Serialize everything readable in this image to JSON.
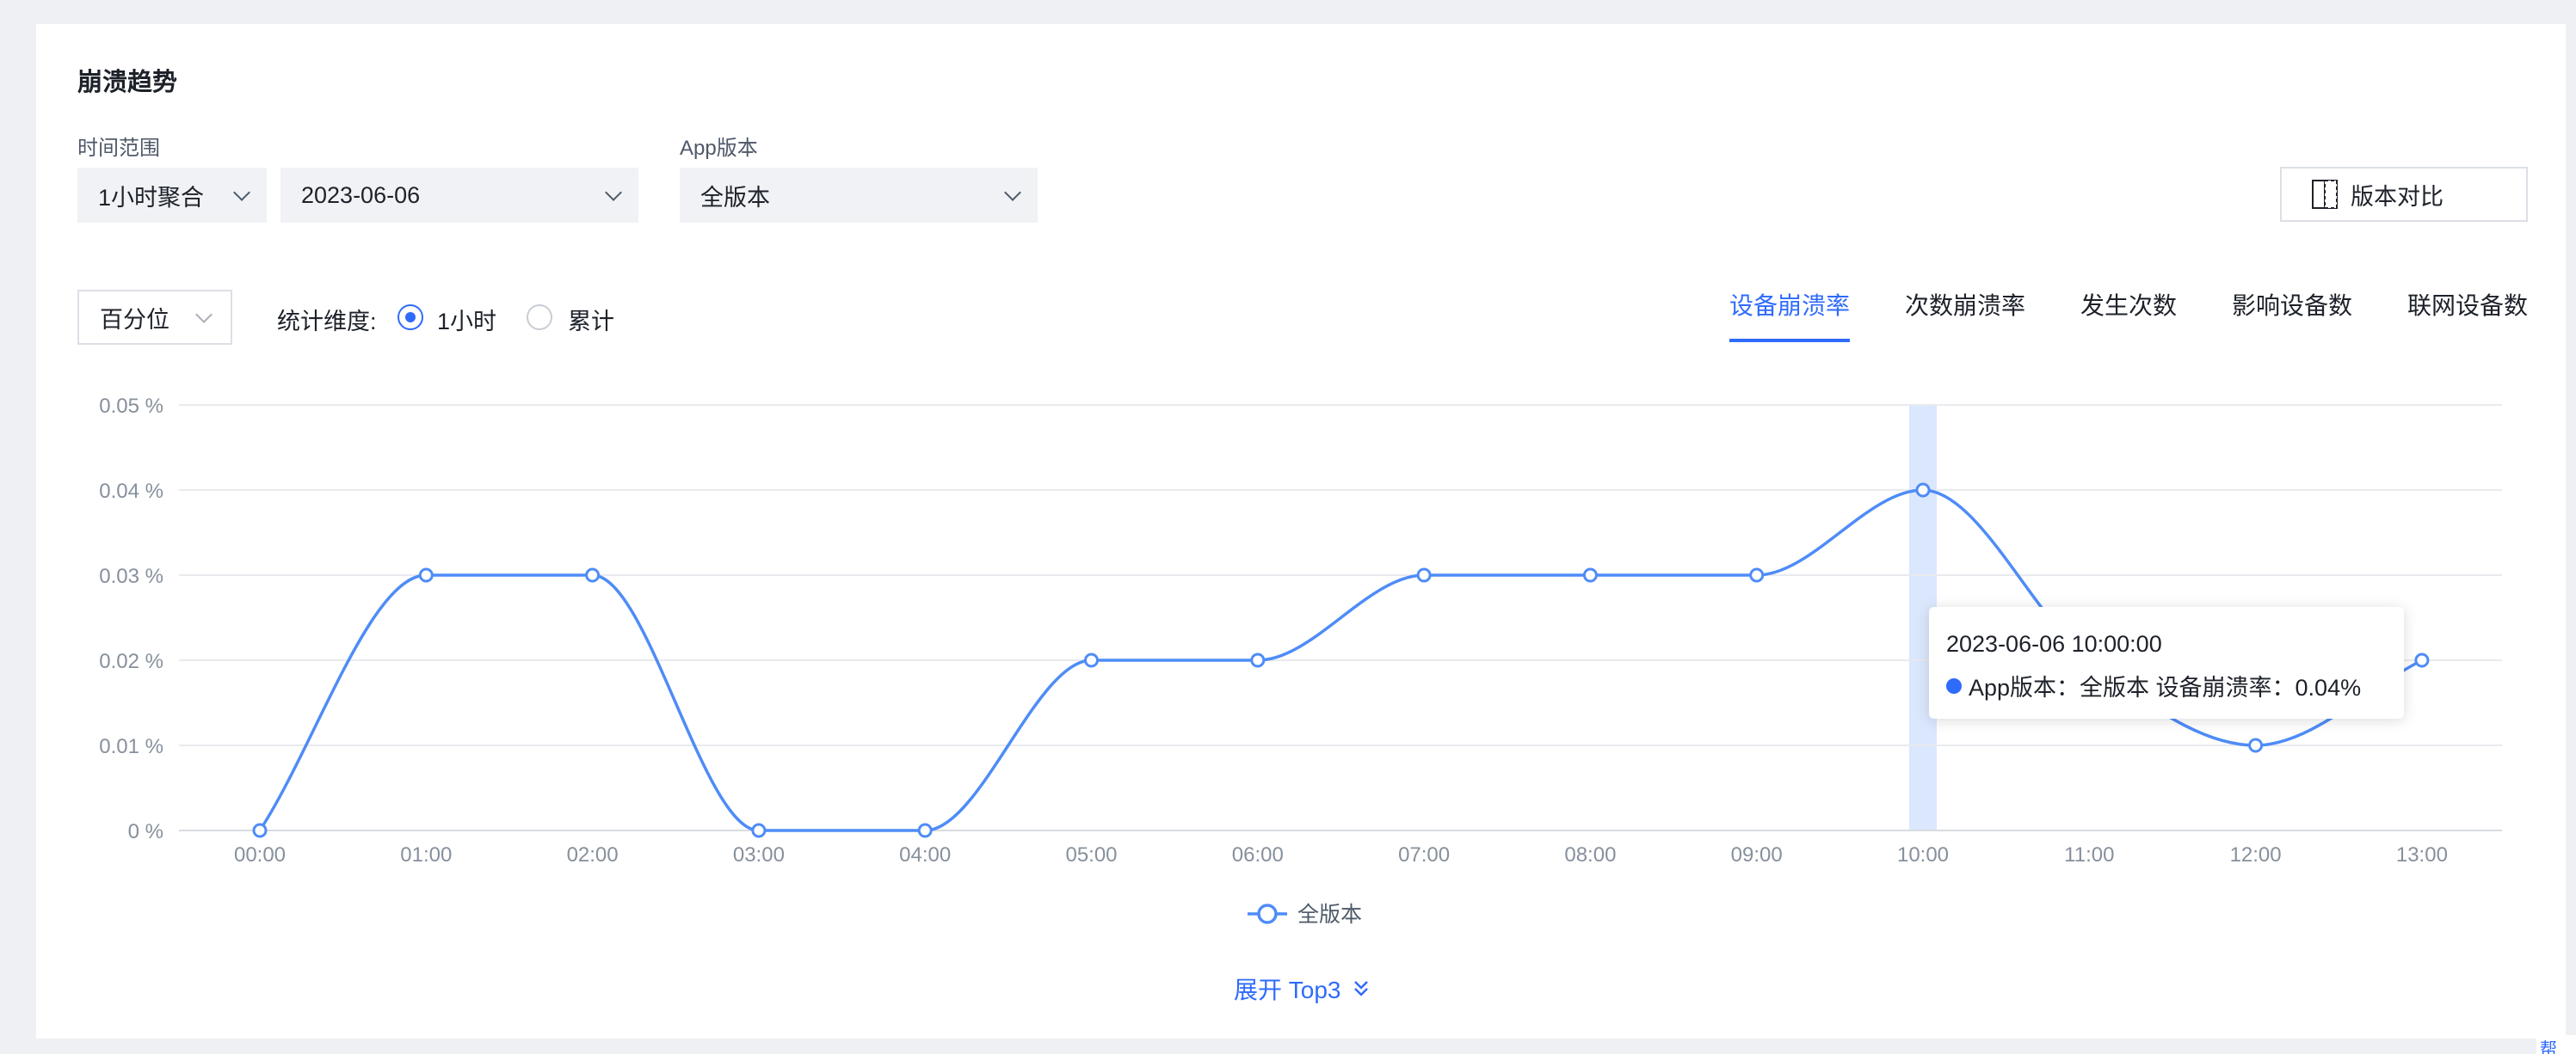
{
  "panel": {
    "title": "崩溃趋势"
  },
  "filters": {
    "time_range_label": "时间范围",
    "aggregation_value": "1小时聚合",
    "date_value": "2023-06-06",
    "app_version_label": "App版本",
    "app_version_value": "全版本",
    "compare_button": "版本对比"
  },
  "controls": {
    "percentile_value": "百分位",
    "dimension_label": "统计维度:",
    "options": [
      {
        "label": "1小时",
        "selected": true
      },
      {
        "label": "累计",
        "selected": false
      }
    ]
  },
  "tabs": [
    {
      "label": "设备崩溃率",
      "active": true
    },
    {
      "label": "次数崩溃率",
      "active": false
    },
    {
      "label": "发生次数",
      "active": false
    },
    {
      "label": "影响设备数",
      "active": false
    },
    {
      "label": "联网设备数",
      "active": false
    }
  ],
  "chart_data": {
    "type": "line",
    "categories": [
      "00:00",
      "01:00",
      "02:00",
      "03:00",
      "04:00",
      "05:00",
      "06:00",
      "07:00",
      "08:00",
      "09:00",
      "10:00",
      "11:00",
      "12:00",
      "13:00"
    ],
    "series": [
      {
        "name": "全版本",
        "values": [
          0,
          0.03,
          0.03,
          0,
          0,
          0.02,
          0.02,
          0.03,
          0.03,
          0.03,
          0.04,
          0.02,
          0.01,
          0.02
        ]
      }
    ],
    "yticks": [
      "0 %",
      "0.01 %",
      "0.02 %",
      "0.03 %",
      "0.04 %",
      "0.05 %"
    ],
    "ylim": [
      0,
      0.05
    ],
    "grid": true,
    "legend": "bottom-center",
    "highlight_index": 10,
    "color": "#4e8cf7"
  },
  "tooltip": {
    "time": "2023-06-06 10:00:00",
    "row": "App版本：全版本 设备崩溃率：0.04%"
  },
  "expand_link": "展开 Top3",
  "help_link": "帮助"
}
